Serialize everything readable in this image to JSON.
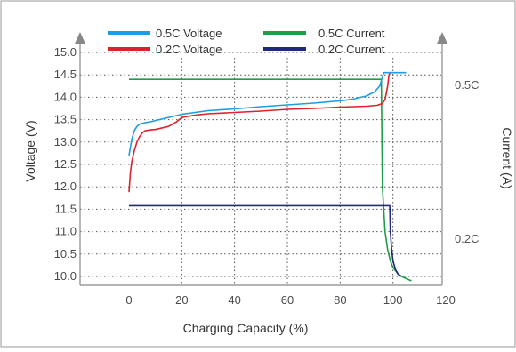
{
  "chart_data": {
    "type": "line",
    "xlabel": "Charging Capacity (%)",
    "ylabel_left": "Voltage (V)",
    "ylabel_right": "Current (A)",
    "xlim": [
      0,
      120
    ],
    "ylim_left": [
      9.8,
      15.05
    ],
    "x_ticks": [
      "0",
      "20",
      "40",
      "60",
      "80",
      "100",
      "120"
    ],
    "y_ticks": [
      "15.0",
      "14.5",
      "14.0",
      "13.5",
      "13.0",
      "12.5",
      "12.0",
      "11.5",
      "11.0",
      "10.5",
      "10.0"
    ],
    "grid": true,
    "legend_position": "top",
    "annotations": {
      "high_current": "0.5C",
      "low_current": "0.2C"
    },
    "colors": {
      "v_05c": "#1e9de3",
      "v_02c": "#e0202a",
      "i_05c": "#1f9e4a",
      "i_02c": "#1f2a7a",
      "axis": "#888888",
      "grid": "#555555",
      "border": "#9a9a9a"
    },
    "series": [
      {
        "name": "0.5C Voltage",
        "key": "v_05c",
        "axis": "left",
        "x": [
          0,
          1,
          2,
          3,
          4,
          6,
          8,
          10,
          15,
          20,
          25,
          30,
          40,
          50,
          60,
          70,
          80,
          85,
          90,
          93,
          95,
          96,
          96.5,
          97,
          98,
          100,
          105
        ],
        "y": [
          12.7,
          13.05,
          13.25,
          13.35,
          13.4,
          13.43,
          13.45,
          13.48,
          13.55,
          13.62,
          13.66,
          13.7,
          13.74,
          13.79,
          13.83,
          13.87,
          13.92,
          13.96,
          14.03,
          14.12,
          14.25,
          14.45,
          14.55,
          14.55,
          14.55,
          14.55,
          14.55
        ]
      },
      {
        "name": "0.2C Voltage",
        "key": "v_02c",
        "axis": "left",
        "x": [
          0,
          0.5,
          1,
          2,
          3,
          4,
          5,
          6,
          8,
          10,
          15,
          18,
          20,
          25,
          30,
          40,
          50,
          60,
          70,
          80,
          85,
          90,
          94,
          96,
          97,
          98,
          98.5,
          99,
          100
        ],
        "y": [
          11.88,
          12.3,
          12.55,
          12.8,
          13.0,
          13.12,
          13.2,
          13.25,
          13.27,
          13.28,
          13.35,
          13.45,
          13.55,
          13.6,
          13.63,
          13.66,
          13.69,
          13.73,
          13.75,
          13.78,
          13.79,
          13.8,
          13.82,
          13.86,
          13.95,
          14.25,
          14.5,
          14.55,
          14.55
        ]
      },
      {
        "name": "0.5C Current",
        "key": "i_05c",
        "axis": "left",
        "x": [
          0,
          20,
          40,
          60,
          80,
          95.6,
          96,
          97,
          98,
          99,
          100,
          102,
          104,
          107
        ],
        "y": [
          14.4,
          14.4,
          14.4,
          14.4,
          14.4,
          14.4,
          12.0,
          11.0,
          10.6,
          10.35,
          10.2,
          10.05,
          9.98,
          9.9
        ]
      },
      {
        "name": "0.2C Current",
        "key": "i_02c",
        "axis": "left",
        "x": [
          0,
          20,
          40,
          60,
          80,
          98.8,
          99,
          99.5,
          100,
          101,
          102,
          103
        ],
        "y": [
          11.58,
          11.58,
          11.58,
          11.58,
          11.58,
          11.58,
          11.0,
          10.6,
          10.35,
          10.15,
          10.05,
          10.0
        ]
      }
    ]
  }
}
